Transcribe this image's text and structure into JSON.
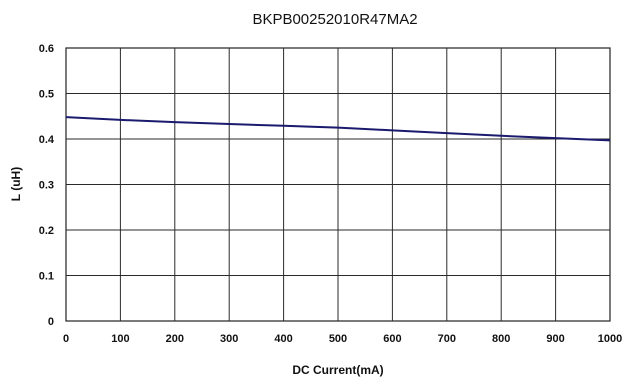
{
  "chart_data": {
    "type": "line",
    "title": "BKPB00252010R47MA2",
    "xlabel": "DC Current(mA)",
    "ylabel": "L (uH)",
    "xlim": [
      0,
      1000
    ],
    "ylim": [
      0,
      0.6
    ],
    "xticks": [
      "0",
      "100",
      "200",
      "300",
      "400",
      "500",
      "600",
      "700",
      "800",
      "900",
      "1000"
    ],
    "yticks": [
      "0",
      "0.1",
      "0.2",
      "0.3",
      "0.4",
      "0.5",
      "0.6"
    ],
    "grid": true,
    "series": [
      {
        "color": "#1a1a6e",
        "x": [
          0,
          100,
          200,
          300,
          400,
          500,
          600,
          700,
          800,
          900,
          1000
        ],
        "y": [
          0.448,
          0.442,
          0.437,
          0.433,
          0.429,
          0.425,
          0.419,
          0.413,
          0.407,
          0.402,
          0.397
        ]
      }
    ]
  }
}
